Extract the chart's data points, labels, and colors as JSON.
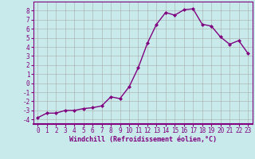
{
  "x": [
    0,
    1,
    2,
    3,
    4,
    5,
    6,
    7,
    8,
    9,
    10,
    11,
    12,
    13,
    14,
    15,
    16,
    17,
    18,
    19,
    20,
    21,
    22,
    23
  ],
  "y": [
    -3.8,
    -3.3,
    -3.3,
    -3.0,
    -3.0,
    -2.8,
    -2.7,
    -2.5,
    -1.5,
    -1.7,
    -0.4,
    1.7,
    4.4,
    6.5,
    7.8,
    7.5,
    8.1,
    8.2,
    6.5,
    6.3,
    5.1,
    4.3,
    4.7,
    3.3
  ],
  "line_color": "#800080",
  "marker": "D",
  "marker_size": 2,
  "bg_color": "#c8eaea",
  "grid_color": "#aaaaaa",
  "xlabel": "Windchill (Refroidissement éolien,°C)",
  "xlim": [
    -0.5,
    23.5
  ],
  "ylim": [
    -4.5,
    9
  ],
  "yticks": [
    -4,
    -3,
    -2,
    -1,
    0,
    1,
    2,
    3,
    4,
    5,
    6,
    7,
    8
  ],
  "xticks": [
    0,
    1,
    2,
    3,
    4,
    5,
    6,
    7,
    8,
    9,
    10,
    11,
    12,
    13,
    14,
    15,
    16,
    17,
    18,
    19,
    20,
    21,
    22,
    23
  ],
  "tick_color": "#800080",
  "label_color": "#800080",
  "axis_color": "#800080",
  "xlabel_fontsize": 6.0,
  "tick_fontsize": 5.5,
  "line_width": 1.0
}
